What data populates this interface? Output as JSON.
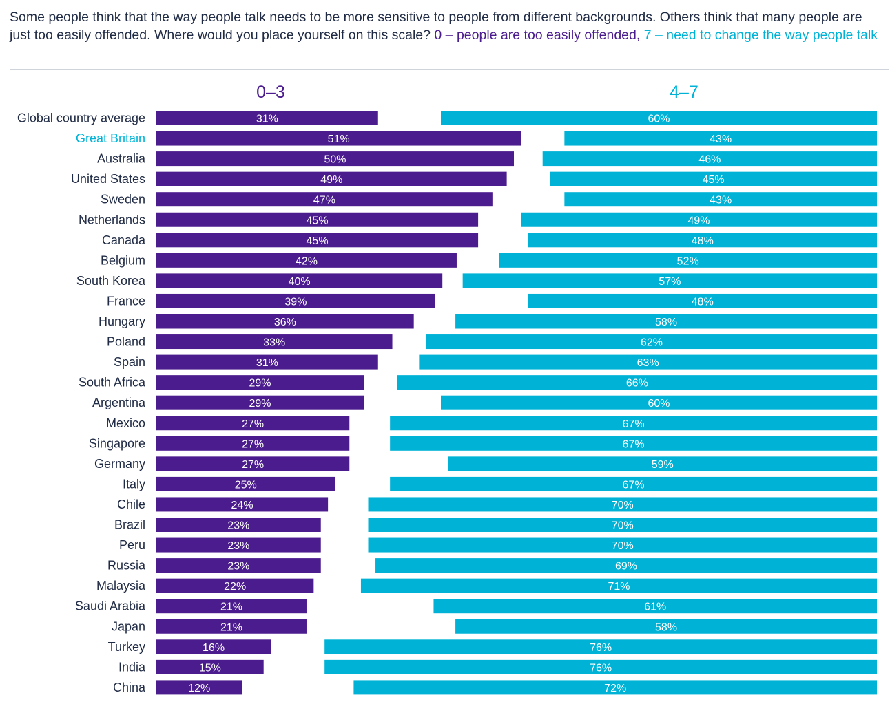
{
  "question": {
    "main": "Some people think that the way people talk needs to be more sensitive to people from different backgrounds. Others think that many people are just too easily offended. Where would you place yourself on this scale?",
    "scale_low": "0 – people are too easily offended,",
    "scale_high": "7 – need to change the way people talk"
  },
  "colors": {
    "purple": "#4b1c8d",
    "cyan": "#00b3d6",
    "highlight": "#00b3d6",
    "label": "#1f2a44"
  },
  "chart_data": {
    "type": "bar",
    "orientation": "horizontal",
    "categories": [
      "Global country average",
      "Great Britain",
      "Australia",
      "United States",
      "Sweden",
      "Netherlands",
      "Canada",
      "Belgium",
      "South Korea",
      "France",
      "Hungary",
      "Poland",
      "Spain",
      "South Africa",
      "Argentina",
      "Mexico",
      "Singapore",
      "Germany",
      "Italy",
      "Chile",
      "Brazil",
      "Peru",
      "Russia",
      "Malaysia",
      "Saudi Arabia",
      "Japan",
      "Turkey",
      "India",
      "China"
    ],
    "highlighted_category": "Great Britain",
    "series": [
      {
        "name": "0–3",
        "values": [
          31,
          51,
          50,
          49,
          47,
          45,
          45,
          42,
          40,
          39,
          36,
          33,
          31,
          29,
          29,
          27,
          27,
          27,
          25,
          24,
          23,
          23,
          23,
          22,
          21,
          21,
          16,
          15,
          12
        ],
        "labels": [
          "31%",
          "51%",
          "50%",
          "49%",
          "47%",
          "45%",
          "45%",
          "42%",
          "40%",
          "39%",
          "36%",
          "33%",
          "31%",
          "29%",
          "29%",
          "27%",
          "27%",
          "27%",
          "25%",
          "24%",
          "23%",
          "23%",
          "23%",
          "22%",
          "21%",
          "21%",
          "16%",
          "15%",
          "12%"
        ]
      },
      {
        "name": "4–7",
        "values": [
          60,
          43,
          46,
          45,
          43,
          49,
          48,
          52,
          57,
          48,
          58,
          62,
          63,
          66,
          60,
          67,
          67,
          59,
          67,
          70,
          70,
          70,
          69,
          71,
          61,
          58,
          76,
          76,
          72
        ],
        "labels": [
          "60%",
          "43%",
          "46%",
          "45%",
          "43%",
          "49%",
          "48%",
          "52%",
          "57%",
          "48%",
          "58%",
          "62%",
          "63%",
          "66%",
          "60%",
          "67%",
          "67%",
          "59%",
          "67%",
          "70%",
          "70%",
          "70%",
          "69%",
          "71%",
          "61%",
          "58%",
          "76%",
          "76%",
          "72%"
        ]
      }
    ],
    "grid": false,
    "legend": "column headers above bars"
  }
}
